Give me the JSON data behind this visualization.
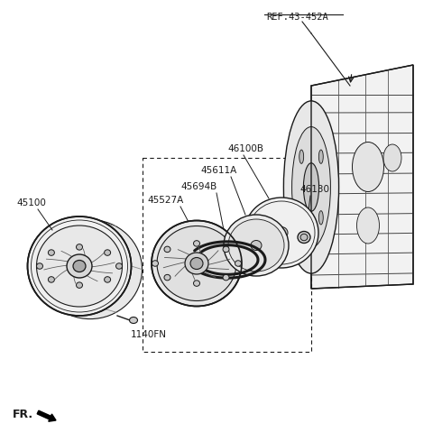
{
  "background_color": "#ffffff",
  "line_color": "#1a1a1a",
  "labels": {
    "ref": "REF.43-452A",
    "p46100B": "46100B",
    "p45611A": "45611A",
    "p46130": "46130",
    "p45694B": "45694B",
    "p45527A": "45527A",
    "p45100": "45100",
    "p1140FN": "1140FN",
    "fr": "FR."
  },
  "fig_width": 4.8,
  "fig_height": 4.9,
  "dpi": 100
}
